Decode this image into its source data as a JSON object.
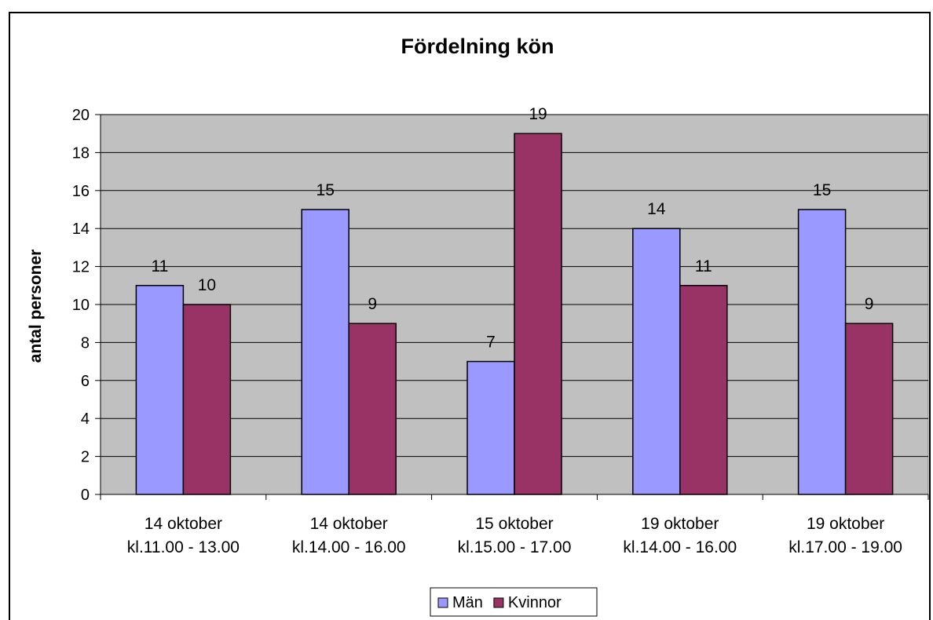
{
  "chart_data": {
    "type": "bar",
    "title": "Fördelning kön",
    "xlabel": "",
    "ylabel": "antal personer",
    "ylim": [
      0,
      20
    ],
    "yticks": [
      0,
      2,
      4,
      6,
      8,
      10,
      12,
      14,
      16,
      18,
      20
    ],
    "grid": true,
    "legend_position": "bottom",
    "categories": [
      [
        "14 oktober",
        "kl.11.00 - 13.00"
      ],
      [
        "14 oktober",
        "kl.14.00 - 16.00"
      ],
      [
        "15 oktober",
        "kl.15.00 - 17.00"
      ],
      [
        "19 oktober",
        "kl.14.00 - 16.00"
      ],
      [
        "19 oktober",
        "kl.17.00 - 19.00"
      ]
    ],
    "series": [
      {
        "name": "Män",
        "color": "#9999ff",
        "values": [
          11,
          15,
          7,
          14,
          15
        ]
      },
      {
        "name": "Kvinnor",
        "color": "#993366",
        "values": [
          10,
          9,
          19,
          11,
          9
        ]
      }
    ],
    "plot_background": "#c0c0c0"
  }
}
